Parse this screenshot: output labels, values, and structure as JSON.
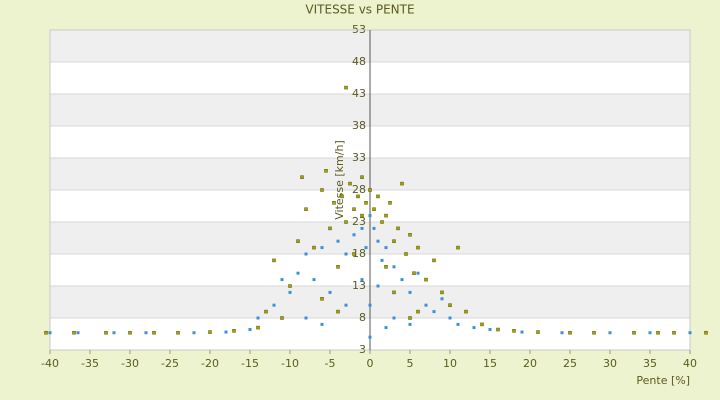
{
  "chart_data": {
    "type": "scatter",
    "title": "VITESSE vs PENTE",
    "xlabel": "Pente [%]",
    "ylabel": "Vitesse [km/h]",
    "xlim": [
      -40,
      40
    ],
    "xticks": [
      -40,
      -35,
      -30,
      -25,
      -20,
      -15,
      -10,
      -5,
      0,
      5,
      10,
      15,
      20,
      25,
      30,
      35,
      40
    ],
    "ylim": [
      3,
      53
    ],
    "yticks": [
      3,
      8,
      13,
      18,
      23,
      28,
      33,
      38,
      43,
      48,
      53
    ],
    "grid": true,
    "series": [
      {
        "color": "#a6a600",
        "x": [
          -40.5,
          -37,
          -33,
          -30,
          -27,
          -24,
          -20,
          -17,
          -14,
          -13,
          -12,
          -10,
          -9,
          -8.5,
          -8,
          -7,
          -6,
          -5.5,
          -5,
          -4.5,
          -4,
          -3.5,
          -3,
          -3,
          -2.5,
          -2,
          -1.5,
          -1,
          -1,
          -0.5,
          0,
          0.5,
          1,
          1.5,
          2,
          2.5,
          3,
          3.5,
          4,
          4.5,
          5,
          5.5,
          6,
          7,
          8,
          9,
          11,
          10,
          12,
          14,
          16,
          18,
          21,
          25,
          28,
          33,
          36,
          38,
          42,
          -11,
          -6,
          3,
          6,
          -2,
          2,
          -4,
          5
        ],
        "values": [
          5.7,
          5.7,
          5.7,
          5.7,
          5.7,
          5.7,
          5.8,
          6,
          6.5,
          9,
          17,
          13,
          20,
          30,
          25,
          19,
          28,
          31,
          22,
          26,
          16,
          27,
          44,
          23,
          29,
          25,
          27,
          24,
          30,
          26,
          28,
          25,
          27,
          23,
          24,
          26,
          20,
          22,
          29,
          18,
          21,
          15,
          19,
          14,
          17,
          12,
          19,
          10,
          9,
          7,
          6.2,
          6,
          5.8,
          5.7,
          5.7,
          5.7,
          5.7,
          5.7,
          5.7,
          8,
          11,
          12,
          9,
          18,
          16,
          9,
          8
        ]
      },
      {
        "color": "#3d8fd6",
        "x": [
          -40,
          -36.5,
          -32,
          -28,
          -22,
          -18,
          -15,
          -14,
          -12,
          -11,
          -10,
          -9,
          -8,
          -7,
          -6,
          -5,
          -4,
          -3,
          -2,
          -1,
          -0.5,
          0,
          0,
          0,
          0.5,
          1,
          1.5,
          2,
          3,
          4,
          5,
          6,
          7,
          8,
          9,
          10,
          11,
          13,
          15,
          19,
          24,
          30,
          35,
          40,
          -8,
          -3,
          3,
          5,
          -1,
          1,
          -6,
          2
        ],
        "values": [
          5.7,
          5.7,
          5.7,
          5.7,
          5.7,
          5.8,
          6.2,
          8,
          10,
          14,
          12,
          15,
          18,
          14,
          19,
          12,
          20,
          18,
          21,
          22,
          19,
          24,
          10,
          5,
          22,
          20,
          17,
          19,
          16,
          14,
          12,
          15,
          10,
          9,
          11,
          8,
          7,
          6.5,
          6.2,
          5.8,
          5.7,
          5.7,
          5.7,
          5.7,
          8,
          10,
          8,
          7,
          14,
          13,
          7,
          6.5
        ]
      }
    ]
  }
}
